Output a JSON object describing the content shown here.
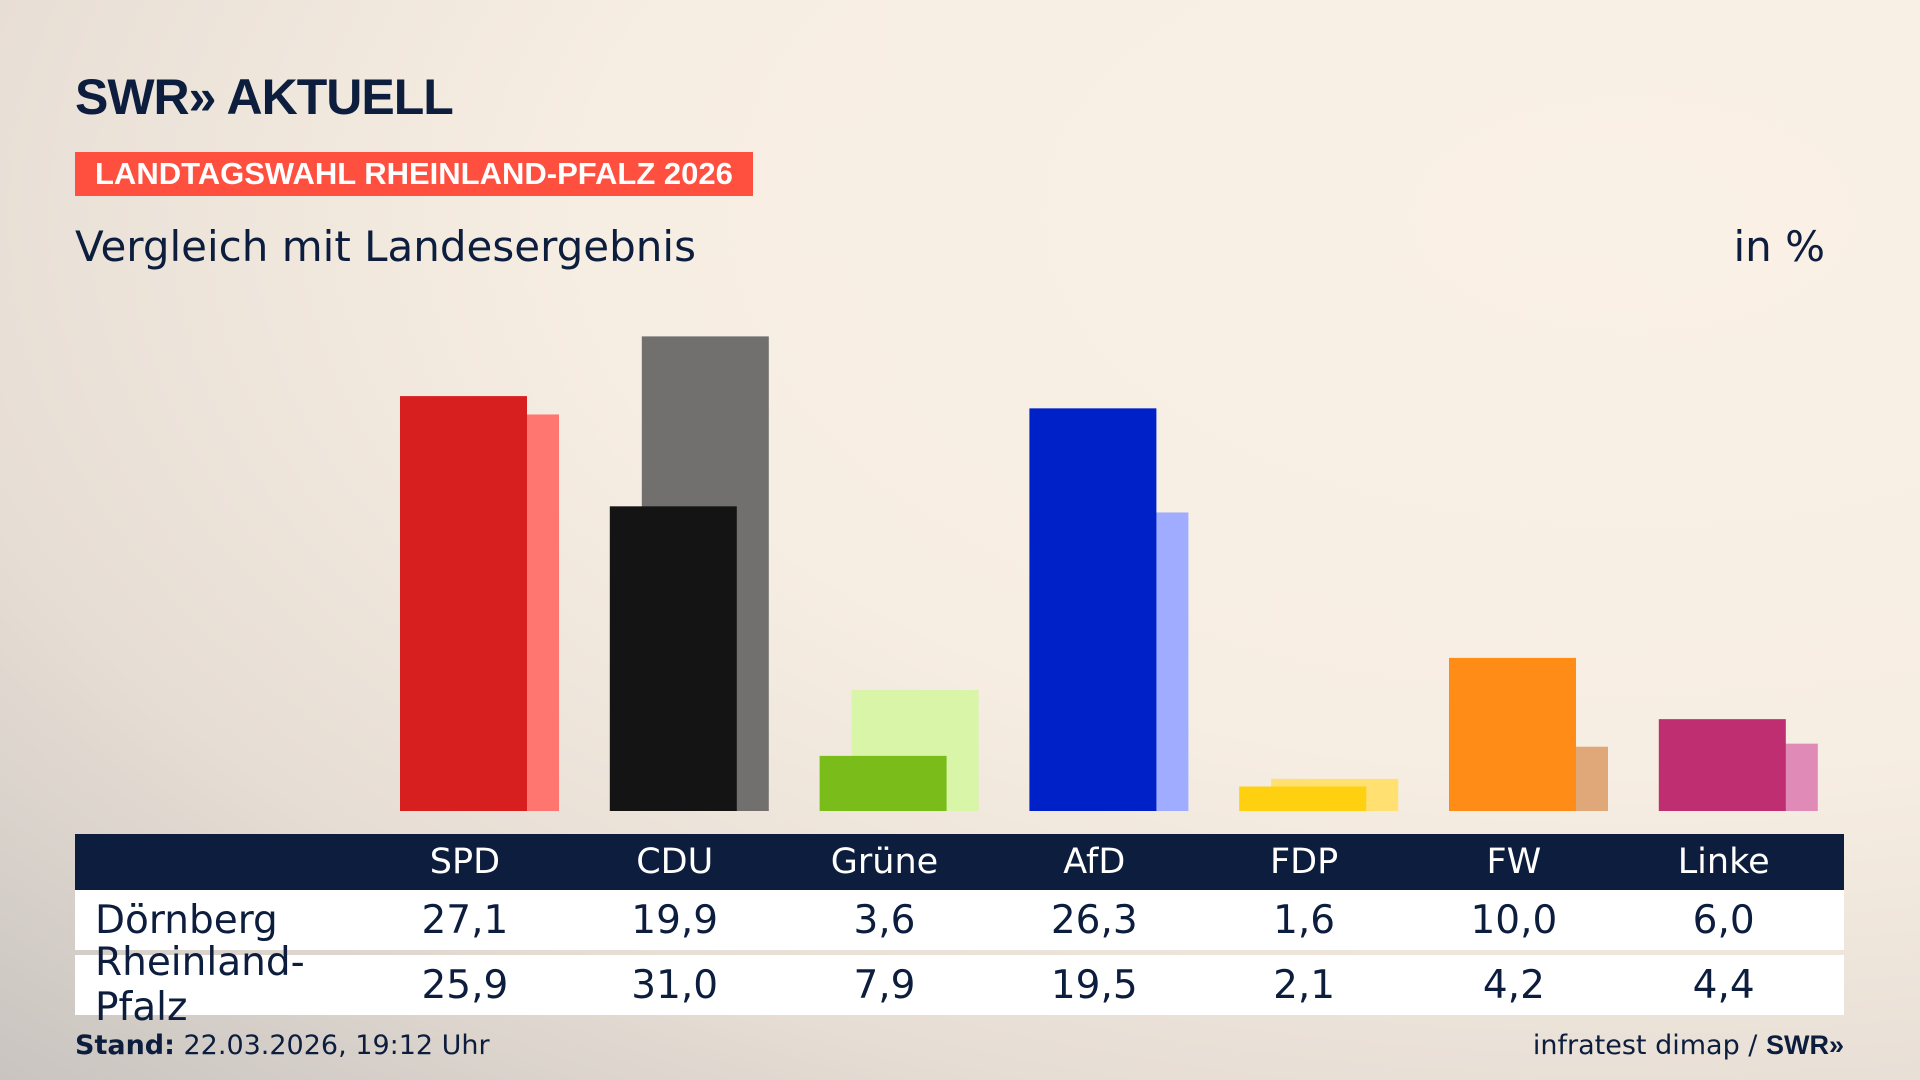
{
  "header": {
    "logo": "SWR» AKTUELL",
    "kicker": "LANDTAGSWAHL RHEINLAND-PFALZ 2026",
    "title": "Vergleich mit Landesergebnis",
    "unit": "in %"
  },
  "chart_data": {
    "type": "bar",
    "categories": [
      "SPD",
      "CDU",
      "Grüne",
      "AfD",
      "FDP",
      "FW",
      "Linke"
    ],
    "series": [
      {
        "name": "Dörnberg",
        "values": [
          27.1,
          19.9,
          3.6,
          26.3,
          1.6,
          10.0,
          6.0
        ],
        "colors": [
          "#d81f1f",
          "#141414",
          "#7abd1b",
          "#0020c8",
          "#ffd010",
          "#ff8c17",
          "#bf2e70"
        ]
      },
      {
        "name": "Rheinland-Pfalz",
        "values": [
          25.9,
          31.0,
          7.9,
          19.5,
          2.1,
          4.2,
          4.4
        ],
        "colors": [
          "#ff7570",
          "#72706e",
          "#d8f5a8",
          "#a0acff",
          "#ffe070",
          "#e0a878",
          "#e08ab8"
        ]
      }
    ],
    "ylim": [
      0,
      31
    ],
    "grid": false
  },
  "table": {
    "headers": [
      "SPD",
      "CDU",
      "Grüne",
      "AfD",
      "FDP",
      "FW",
      "Linke"
    ],
    "rows": [
      {
        "label": "Dörnberg",
        "values": [
          "27,1",
          "19,9",
          "3,6",
          "26,3",
          "1,6",
          "10,0",
          "6,0"
        ]
      },
      {
        "label": "Rheinland-Pfalz",
        "values": [
          "25,9",
          "31,0",
          "7,9",
          "19,5",
          "2,1",
          "4,2",
          "4,4"
        ]
      }
    ]
  },
  "footer": {
    "stand_label": "Stand:",
    "stand_value": " 22.03.2026, 19:12 Uhr",
    "source": "infratest dimap / ",
    "source_logo": "SWR»"
  }
}
